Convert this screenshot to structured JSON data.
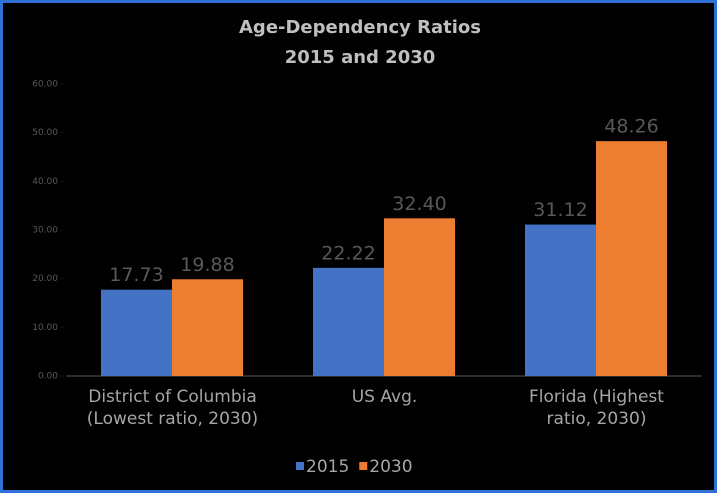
{
  "chart_data": {
    "type": "bar",
    "title": [
      "Age-Dependency Ratios",
      "2015 and 2030"
    ],
    "categories": [
      "District of Columbia (Lowest ratio, 2030)",
      "US Avg.",
      "Florida (Highest ratio, 2030)"
    ],
    "series": [
      {
        "name": "2015",
        "color": "#4472c4",
        "values": [
          17.73,
          22.22,
          31.12
        ],
        "value_labels": [
          "17.73",
          "22.22",
          "31.12"
        ]
      },
      {
        "name": "2030",
        "color": "#ed7d31",
        "values": [
          19.88,
          32.4,
          48.26
        ],
        "value_labels": [
          "19.88",
          "32.40",
          "48.26"
        ]
      }
    ],
    "ylim": [
      0,
      60
    ],
    "yticks": [
      {
        "value": 0,
        "label": "0.00"
      },
      {
        "value": 10,
        "label": "10.00"
      },
      {
        "value": 20,
        "label": "20.00"
      },
      {
        "value": 30,
        "label": "30.00"
      },
      {
        "value": 40,
        "label": "40.00"
      },
      {
        "value": 50,
        "label": "50.00"
      },
      {
        "value": 60,
        "label": "60.00"
      }
    ],
    "legend": "bottom"
  }
}
